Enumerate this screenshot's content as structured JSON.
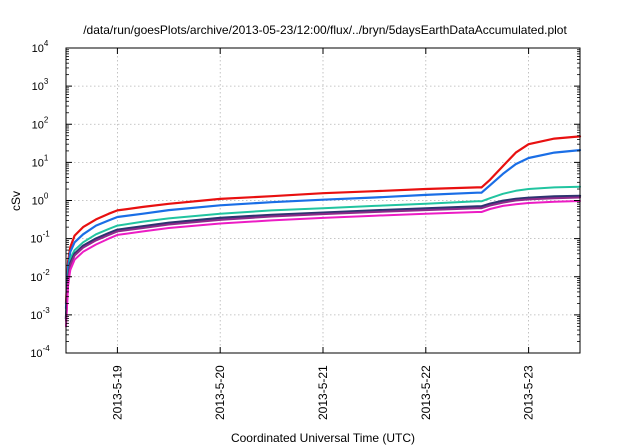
{
  "chart_data": {
    "type": "line",
    "title": "/data/run/goesPlots/archive/2013-05-23/12:00/flux/../bryn/5daysEarthDataAccumulated.plot",
    "xlabel": "Coordinated Universal Time (UTC)",
    "ylabel": "cSv",
    "y_scale": "log",
    "ylim": [
      0.0001,
      10000
    ],
    "xlim": [
      "2013-05-18 12:00",
      "2013-05-23 12:00"
    ],
    "grid": true,
    "legend": "none",
    "y_ticks": [
      {
        "value": 0.0001,
        "base": "10",
        "exp": "-4"
      },
      {
        "value": 0.001,
        "base": "10",
        "exp": "-3"
      },
      {
        "value": 0.01,
        "base": "10",
        "exp": "-2"
      },
      {
        "value": 0.1,
        "base": "10",
        "exp": "-1"
      },
      {
        "value": 1,
        "base": "10",
        "exp": "0"
      },
      {
        "value": 10,
        "base": "10",
        "exp": "1"
      },
      {
        "value": 100,
        "base": "10",
        "exp": "2"
      },
      {
        "value": 1000,
        "base": "10",
        "exp": "3"
      },
      {
        "value": 10000,
        "base": "10",
        "exp": "4"
      }
    ],
    "x_ticks": [
      {
        "value": "2013-05-19 00:00",
        "label": "2013-5-19"
      },
      {
        "value": "2013-05-20 00:00",
        "label": "2013-5-20"
      },
      {
        "value": "2013-05-21 00:00",
        "label": "2013-5-21"
      },
      {
        "value": "2013-05-22 00:00",
        "label": "2013-5-22"
      },
      {
        "value": "2013-05-23 00:00",
        "label": "2013-5-23"
      }
    ],
    "x": [
      "2013-05-18 12:00",
      "2013-05-18 12:30",
      "2013-05-18 13:00",
      "2013-05-18 14:00",
      "2013-05-18 16:00",
      "2013-05-18 19:00",
      "2013-05-18 22:00",
      "2013-05-19 00:00",
      "2013-05-19 06:00",
      "2013-05-19 12:00",
      "2013-05-20 00:00",
      "2013-05-20 12:00",
      "2013-05-21 00:00",
      "2013-05-21 12:00",
      "2013-05-22 00:00",
      "2013-05-22 12:00",
      "2013-05-22 13:00",
      "2013-05-22 15:00",
      "2013-05-22 18:00",
      "2013-05-22 21:00",
      "2013-05-23 00:00",
      "2013-05-23 06:00",
      "2013-05-23 12:00"
    ],
    "series": [
      {
        "color": "#e81010",
        "width": 2.2,
        "values": [
          0.002,
          0.025,
          0.06,
          0.12,
          0.2,
          0.32,
          0.45,
          0.55,
          0.68,
          0.82,
          1.1,
          1.3,
          1.55,
          1.75,
          2.0,
          2.2,
          2.2,
          3.5,
          8,
          18,
          30,
          42,
          48
        ]
      },
      {
        "color": "#1a6ee6",
        "width": 2.2,
        "values": [
          0.0015,
          0.018,
          0.045,
          0.08,
          0.13,
          0.22,
          0.3,
          0.37,
          0.45,
          0.56,
          0.75,
          0.9,
          1.05,
          1.2,
          1.4,
          1.6,
          1.6,
          2.5,
          5,
          9,
          13,
          18,
          21
        ]
      },
      {
        "color": "#21c4a0",
        "width": 2,
        "values": [
          0.001,
          0.012,
          0.03,
          0.05,
          0.08,
          0.13,
          0.18,
          0.22,
          0.28,
          0.34,
          0.45,
          0.55,
          0.63,
          0.72,
          0.82,
          0.95,
          0.95,
          1.15,
          1.5,
          1.8,
          2.0,
          2.2,
          2.3
        ]
      },
      {
        "color": "#2c3470",
        "width": 2.4,
        "values": [
          0.0008,
          0.009,
          0.023,
          0.04,
          0.065,
          0.1,
          0.14,
          0.17,
          0.21,
          0.26,
          0.35,
          0.42,
          0.48,
          0.55,
          0.62,
          0.7,
          0.7,
          0.82,
          0.98,
          1.1,
          1.18,
          1.27,
          1.32
        ]
      },
      {
        "color": "#8e2a8a",
        "width": 2,
        "values": [
          0.0007,
          0.008,
          0.02,
          0.036,
          0.058,
          0.09,
          0.125,
          0.155,
          0.19,
          0.235,
          0.31,
          0.38,
          0.44,
          0.5,
          0.56,
          0.63,
          0.63,
          0.74,
          0.88,
          1.0,
          1.07,
          1.15,
          1.2
        ]
      },
      {
        "color": "#ec1cc4",
        "width": 2,
        "values": [
          0.0005,
          0.006,
          0.015,
          0.028,
          0.045,
          0.07,
          0.1,
          0.125,
          0.155,
          0.19,
          0.25,
          0.3,
          0.35,
          0.4,
          0.45,
          0.5,
          0.5,
          0.6,
          0.72,
          0.8,
          0.86,
          0.93,
          0.97
        ]
      }
    ]
  }
}
